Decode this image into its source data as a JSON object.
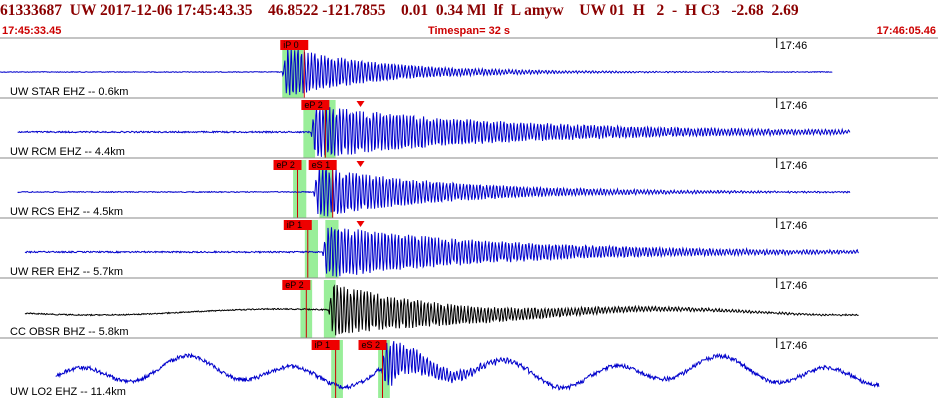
{
  "header": {
    "event_id": "61333687",
    "network": "UW",
    "datetime": "2017-12-06 17:45:43.35",
    "latitude": "46.8522",
    "longitude": "-121.7855",
    "depth": "0.01",
    "magnitude": "0.34",
    "mag_type": "Ml",
    "flags": "lf  L amyw",
    "channel_info": "UW 01  H   2  -  H C3",
    "value_a": "-2.68",
    "value_b": "2.69",
    "start_time": "17:45:33.45",
    "timespan_label": "Timespan=",
    "timespan_value": "32 s",
    "end_time": "17:46:05.46"
  },
  "colors": {
    "header_text": "#8b0000",
    "subheader_text": "#cc0000",
    "trace_blue": "#0000cc",
    "trace_black": "#000000",
    "pick_box": "#ee0000",
    "pick_window": "#99ee99",
    "separator": "#888888"
  },
  "traces": [
    {
      "label": "UW STAR EHZ -- 0.6km",
      "time_mark": "17:46",
      "color": "blue",
      "picks": [
        {
          "label": "iP 0",
          "t": 9.63
        }
      ],
      "windows": [
        {
          "t0": 9.63,
          "t1": 10.35
        }
      ],
      "arrival": 9.63,
      "duration": 10.0,
      "amp": 1.0,
      "noise": 0.06,
      "start": 0.0,
      "end": 28.4
    },
    {
      "label": "UW RCM EHZ -- 4.4km",
      "time_mark": "17:46",
      "color": "blue",
      "picks": [
        {
          "label": "eP 2",
          "t": 10.35
        }
      ],
      "windows": [
        {
          "t0": 10.35,
          "t1": 10.75
        },
        {
          "t0": 11.05,
          "t1": 11.45
        }
      ],
      "arrival": 10.6,
      "duration": 22.0,
      "amp": 1.0,
      "noise": 0.12,
      "marker_t": 12.3,
      "start": 0.6,
      "end": 29.0
    },
    {
      "label": "UW RCS EHZ -- 4.5km",
      "time_mark": "17:46",
      "color": "blue",
      "picks": [
        {
          "label": "eP 2",
          "t": 9.4
        },
        {
          "label": "eS 1",
          "t": 10.6
        }
      ],
      "windows": [
        {
          "t0": 10.0,
          "t1": 10.45
        },
        {
          "t0": 10.9,
          "t1": 11.35
        }
      ],
      "arrival": 10.7,
      "duration": 14.0,
      "amp": 1.0,
      "noise": 0.08,
      "marker_t": 12.3,
      "start": 0.6,
      "end": 29.0
    },
    {
      "label": "UW RER EHZ -- 5.7km",
      "time_mark": "17:46",
      "color": "blue",
      "picks": [
        {
          "label": "iP 1",
          "t": 9.75
        }
      ],
      "windows": [
        {
          "t0": 10.4,
          "t1": 10.85
        },
        {
          "t0": 11.1,
          "t1": 11.55
        }
      ],
      "arrival": 11.0,
      "duration": 20.0,
      "amp": 1.0,
      "noise": 0.12,
      "marker_t": 12.3,
      "start": 0.85,
      "end": 29.3
    },
    {
      "label": "CC OBSR BHZ -- 5.8km",
      "time_mark": "17:46",
      "color": "black",
      "picks": [
        {
          "label": "eP 2",
          "t": 9.7
        }
      ],
      "windows": [
        {
          "t0": 10.25,
          "t1": 10.65
        },
        {
          "t0": 11.05,
          "t1": 11.45
        }
      ],
      "arrival": 11.2,
      "duration": 14.0,
      "amp": 1.0,
      "noise": 0.1,
      "start": 0.85,
      "end": 29.3
    },
    {
      "label": "UW LO2 EHZ -- 11.4km",
      "time_mark": "17:46",
      "color": "blue",
      "picks": [
        {
          "label": "iP 1",
          "t": 10.7
        },
        {
          "label": "eS 2",
          "t": 12.3
        }
      ],
      "windows": [
        {
          "t0": 11.3,
          "t1": 11.7
        },
        {
          "t0": 12.9,
          "t1": 13.3
        }
      ],
      "arrival": 13.0,
      "duration": 5.0,
      "amp": 1.0,
      "noise": 0.35,
      "start": 1.9,
      "end": 30.0
    }
  ]
}
